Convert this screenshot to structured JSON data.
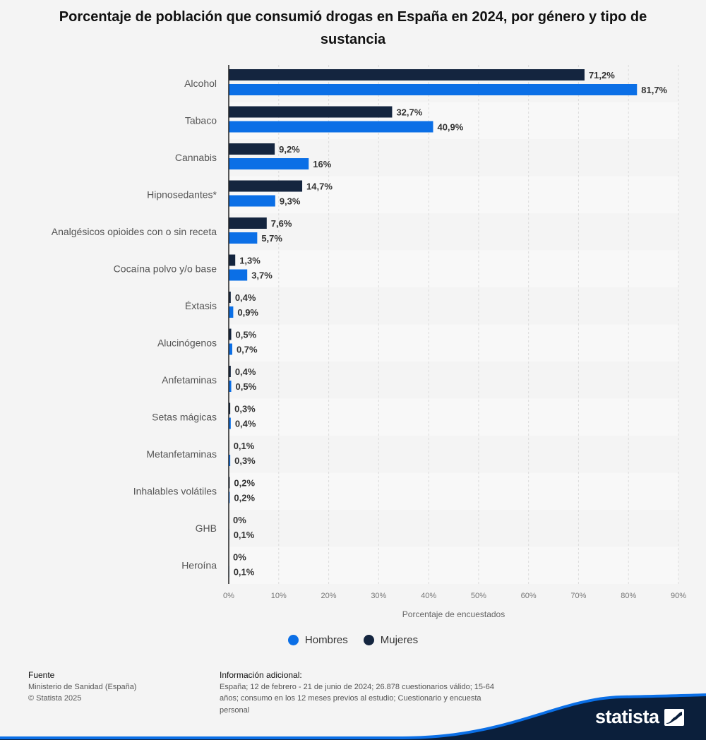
{
  "header": {
    "title": "Porcentaje de población que consumió drogas en España en 2024, por género y tipo de sustancia"
  },
  "chart_data": {
    "type": "bar",
    "orientation": "horizontal",
    "categories": [
      "Alcohol",
      "Tabaco",
      "Cannabis",
      "Hipnosedantes*",
      "Analgésicos opioides con o sin receta",
      "Cocaína polvo y/o base",
      "Éxtasis",
      "Alucinógenos",
      "Anfetaminas",
      "Setas mágicas",
      "Metanfetaminas",
      "Inhalables volátiles",
      "GHB",
      "Heroína"
    ],
    "series": [
      {
        "name": "Mujeres",
        "color": "#14253f",
        "values": [
          71.2,
          32.7,
          9.2,
          14.7,
          7.6,
          1.3,
          0.4,
          0.5,
          0.4,
          0.3,
          0.1,
          0.2,
          0,
          0
        ],
        "labels": [
          "71,2%",
          "32,7%",
          "9,2%",
          "14,7%",
          "7,6%",
          "1,3%",
          "0,4%",
          "0,5%",
          "0,4%",
          "0,3%",
          "0,1%",
          "0,2%",
          "0%",
          "0%"
        ]
      },
      {
        "name": "Hombres",
        "color": "#0b6fe6",
        "values": [
          81.7,
          40.9,
          16,
          9.3,
          5.7,
          3.7,
          0.9,
          0.7,
          0.5,
          0.4,
          0.3,
          0.2,
          0.1,
          0.1
        ],
        "labels": [
          "81,7%",
          "40,9%",
          "16%",
          "9,3%",
          "5,7%",
          "3,7%",
          "0,9%",
          "0,7%",
          "0,5%",
          "0,4%",
          "0,3%",
          "0,2%",
          "0,1%",
          "0,1%"
        ]
      }
    ],
    "xlim": [
      0,
      90
    ],
    "xticks": [
      0,
      10,
      20,
      30,
      40,
      50,
      60,
      70,
      80,
      90
    ],
    "xtick_labels": [
      "0%",
      "10%",
      "20%",
      "30%",
      "40%",
      "50%",
      "60%",
      "70%",
      "80%",
      "90%"
    ],
    "xlabel": "Porcentaje de encuestados",
    "ylabel": "",
    "grid": true,
    "legend_position": "bottom-center"
  },
  "legend": {
    "items": [
      {
        "label": "Hombres",
        "color": "#0b6fe6"
      },
      {
        "label": "Mujeres",
        "color": "#14253f"
      }
    ]
  },
  "footer": {
    "source_heading": "Fuente",
    "source_lines": [
      "Ministerio de Sanidad (España)",
      "© Statista 2025"
    ],
    "info_heading": "Información adicional:",
    "info_text": "España; 12 de febrero - 21 de junio de 2024; 26.878 cuestionarios válido; 15-64 años; consumo en los 12 meses previos al estudio; Cuestionario y encuesta personal"
  },
  "brand": {
    "name": "statista",
    "wave_color": "#0b1f3b",
    "wave_accent": "#0b6fe6"
  }
}
